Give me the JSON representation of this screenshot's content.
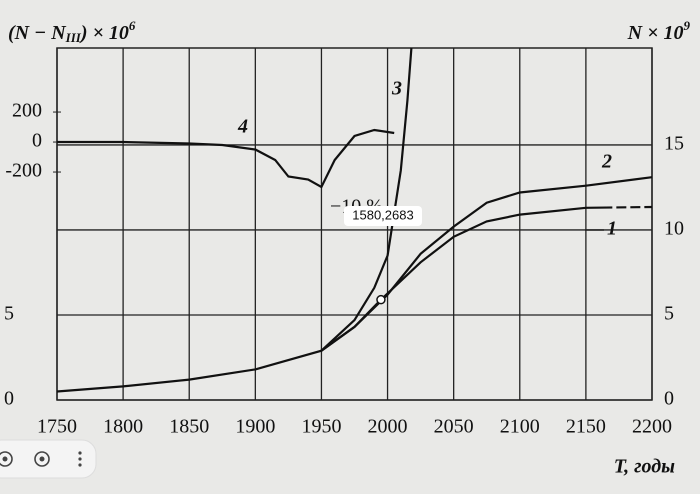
{
  "chart_data": {
    "type": "line",
    "y_label_parts": [
      "(N − N",
      "III",
      ") × 10",
      "6"
    ],
    "y2_label_parts": [
      "N × 10",
      "9"
    ],
    "x_label": "T, годы",
    "xlim": [
      1750,
      2200
    ],
    "xticks": [
      1750,
      1800,
      1850,
      1900,
      1950,
      2000,
      2050,
      2100,
      2150,
      2200
    ],
    "ylim": [
      -1720,
      627
    ],
    "yticks": [
      -200,
      0,
      200
    ],
    "y2lim": [
      0,
      20.7
    ],
    "y2ticks": [
      0,
      5,
      10,
      15
    ],
    "left_y2ticks": [
      0,
      5
    ],
    "grid": true,
    "series": [
      {
        "name": "1",
        "color": "#111",
        "axis": "y2",
        "dash_from_x": 2170,
        "x": [
          1750,
          1800,
          1850,
          1900,
          1950,
          1975,
          1995,
          2025,
          2050,
          2075,
          2100,
          2150,
          2200
        ],
        "values": [
          0.5,
          0.8,
          1.2,
          1.8,
          2.9,
          4.3,
          5.9,
          8.1,
          9.6,
          10.5,
          10.9,
          11.3,
          11.35
        ]
      },
      {
        "name": "2",
        "color": "#111",
        "axis": "y2",
        "x": [
          1950,
          1975,
          2000,
          2025,
          2050,
          2075,
          2100,
          2150,
          2200
        ],
        "values": [
          2.9,
          4.3,
          6.2,
          8.6,
          10.2,
          11.6,
          12.2,
          12.6,
          13.1
        ]
      },
      {
        "name": "3",
        "color": "#111",
        "axis": "y2",
        "x": [
          1950,
          1975,
          1990,
          2000,
          2010,
          2015,
          2018
        ],
        "values": [
          2.9,
          4.7,
          6.6,
          8.5,
          13.5,
          17.6,
          20.7
        ]
      },
      {
        "name": "4",
        "color": "#111",
        "x": [
          1750,
          1800,
          1850,
          1875,
          1900,
          1915,
          1925,
          1940,
          1950,
          1960,
          1975,
          1990,
          2005
        ],
        "values": [
          0,
          0,
          -10,
          -20,
          -50,
          -120,
          -230,
          -250,
          -300,
          -120,
          40,
          80,
          60
        ]
      }
    ],
    "point": {
      "x": 1995,
      "value": 5.9
    },
    "annotations": [
      "−10 %"
    ],
    "tooltip": "1580,2683"
  }
}
